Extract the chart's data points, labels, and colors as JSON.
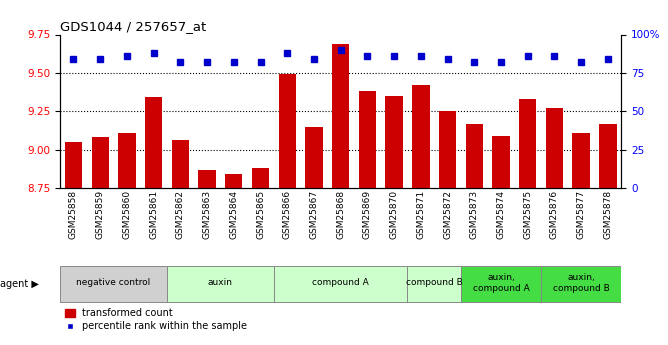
{
  "title": "GDS1044 / 257657_at",
  "samples": [
    "GSM25858",
    "GSM25859",
    "GSM25860",
    "GSM25861",
    "GSM25862",
    "GSM25863",
    "GSM25864",
    "GSM25865",
    "GSM25866",
    "GSM25867",
    "GSM25868",
    "GSM25869",
    "GSM25870",
    "GSM25871",
    "GSM25872",
    "GSM25873",
    "GSM25874",
    "GSM25875",
    "GSM25876",
    "GSM25877",
    "GSM25878"
  ],
  "bar_values": [
    9.05,
    9.08,
    9.11,
    9.34,
    9.06,
    8.87,
    8.84,
    8.88,
    9.49,
    9.15,
    9.69,
    9.38,
    9.35,
    9.42,
    9.25,
    9.17,
    9.09,
    9.33,
    9.27,
    9.11,
    9.17
  ],
  "percentile_values": [
    84,
    84,
    86,
    88,
    82,
    82,
    82,
    82,
    88,
    84,
    90,
    86,
    86,
    86,
    84,
    82,
    82,
    86,
    86,
    82,
    84
  ],
  "ylim_left": [
    8.75,
    9.75
  ],
  "ylim_right": [
    0,
    100
  ],
  "yticks_left": [
    8.75,
    9.0,
    9.25,
    9.5,
    9.75
  ],
  "yticks_right": [
    0,
    25,
    50,
    75,
    100
  ],
  "ytick_labels_right": [
    "0",
    "25",
    "50",
    "75",
    "100%"
  ],
  "bar_color": "#cc0000",
  "dot_color": "#0000cc",
  "agent_groups": [
    {
      "label": "negative control",
      "start": 0,
      "end": 4,
      "color": "#d0d0d0"
    },
    {
      "label": "auxin",
      "start": 4,
      "end": 8,
      "color": "#ccffcc"
    },
    {
      "label": "compound A",
      "start": 8,
      "end": 13,
      "color": "#ccffcc"
    },
    {
      "label": "compound B",
      "start": 13,
      "end": 15,
      "color": "#ccffcc"
    },
    {
      "label": "auxin,\ncompound A",
      "start": 15,
      "end": 18,
      "color": "#44dd44"
    },
    {
      "label": "auxin,\ncompound B",
      "start": 18,
      "end": 21,
      "color": "#44dd44"
    }
  ],
  "legend_bar_label": "transformed count",
  "legend_dot_label": "percentile rank within the sample",
  "grid_yticks": [
    9.0,
    9.25,
    9.5
  ],
  "background_color": "#ffffff"
}
